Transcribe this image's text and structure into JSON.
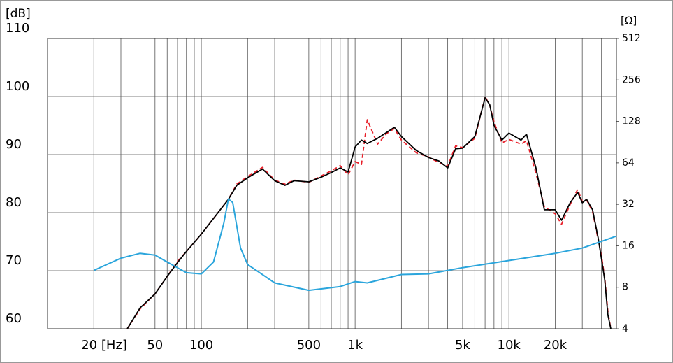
{
  "chart_data": {
    "type": "line",
    "xlabel": "[Hz]",
    "ylabel": "[dB]",
    "y2label": "[Ω]",
    "xlog": true,
    "y2log": true,
    "grid": true,
    "xlim": [
      10,
      50000
    ],
    "ylim": [
      60,
      110
    ],
    "y2lim": [
      4,
      512
    ],
    "xticks": [
      {
        "value": 20,
        "label": "20 [Hz]"
      },
      50,
      100,
      500,
      {
        "value": 1000,
        "label": "1k"
      },
      {
        "value": 5000,
        "label": "5k"
      },
      {
        "value": 10000,
        "label": "10k"
      },
      {
        "value": 20000,
        "label": "20k"
      }
    ],
    "xgrid": [
      20,
      30,
      40,
      50,
      60,
      70,
      80,
      90,
      100,
      200,
      300,
      400,
      500,
      600,
      700,
      800,
      900,
      1000,
      2000,
      3000,
      4000,
      5000,
      6000,
      7000,
      8000,
      9000,
      10000,
      20000,
      30000,
      40000
    ],
    "yticks": [
      60,
      70,
      80,
      90,
      100,
      110
    ],
    "y2ticks": [
      4,
      8,
      16,
      32,
      64,
      128,
      256,
      512
    ],
    "series": [
      {
        "color": "#e8202a",
        "dash": true,
        "x": [
          33,
          40,
          50,
          60,
          70,
          80,
          100,
          120,
          150,
          170,
          200,
          250,
          300,
          350,
          400,
          500,
          600,
          700,
          800,
          900,
          1000,
          1100,
          1200,
          1400,
          1600,
          1800,
          2000,
          2500,
          3000,
          3500,
          4000,
          4500,
          5000,
          6000,
          7000,
          7500,
          8000,
          9000,
          10000,
          12000,
          13000,
          15000,
          17000,
          20000,
          22000,
          25000,
          28000,
          30000,
          32000,
          35000,
          38000,
          40000,
          42000,
          44000,
          46000
        ],
        "values": [
          60,
          63.4,
          66,
          69,
          71.6,
          73.3,
          76.3,
          79,
          82.3,
          84.9,
          86.2,
          87.8,
          85.6,
          84.9,
          85.6,
          85.2,
          86.3,
          87.2,
          88.1,
          86.5,
          88.8,
          88.3,
          96,
          91.8,
          93.6,
          94.5,
          92.5,
          90.3,
          89.6,
          88.6,
          88,
          91.5,
          91.2,
          92.8,
          100,
          98.5,
          95.6,
          92,
          92.6,
          91.8,
          92.4,
          86.8,
          81,
          79.8,
          78,
          81.4,
          84,
          81.9,
          82.2,
          80.2,
          75.4,
          72.5,
          68.8,
          63,
          60
        ]
      },
      {
        "color": "#000000",
        "dash": false,
        "x": [
          33,
          40,
          50,
          60,
          70,
          80,
          100,
          120,
          150,
          170,
          200,
          250,
          300,
          350,
          400,
          500,
          600,
          700,
          800,
          900,
          1000,
          1100,
          1200,
          1400,
          1600,
          1800,
          2000,
          2500,
          3000,
          3500,
          4000,
          4500,
          5000,
          6000,
          7000,
          7500,
          8000,
          9000,
          10000,
          12000,
          13000,
          15000,
          17000,
          20000,
          22000,
          25000,
          28000,
          30000,
          32000,
          35000,
          38000,
          40000,
          42000,
          44000,
          46000
        ],
        "values": [
          60,
          63.6,
          66,
          69,
          71.4,
          73.3,
          76.3,
          79,
          82.3,
          84.7,
          86,
          87.5,
          85.5,
          84.7,
          85.5,
          85.3,
          86.1,
          86.9,
          87.7,
          87,
          91.3,
          92.5,
          91.9,
          92.8,
          93.8,
          94.7,
          93.1,
          90.7,
          89.5,
          88.9,
          87.7,
          91,
          91.1,
          93.1,
          99.8,
          98.6,
          95,
          92.5,
          93.7,
          92.5,
          93.5,
          87.7,
          80.5,
          80.5,
          78.7,
          81.7,
          83.5,
          81.7,
          82.3,
          80.5,
          75.7,
          72,
          68.4,
          62.4,
          60
        ]
      },
      {
        "color": "#2aa5dc",
        "dash": false,
        "axis": "y2",
        "x": [
          20,
          30,
          40,
          50,
          60,
          80,
          100,
          120,
          140,
          150,
          160,
          180,
          200,
          300,
          500,
          800,
          1000,
          1200,
          2000,
          3000,
          5000,
          10000,
          20000,
          30000,
          50000
        ],
        "values": [
          10.6,
          13,
          14.1,
          13.7,
          12.2,
          10.2,
          10,
          12.2,
          23.3,
          35,
          33,
          15.4,
          11.7,
          8.6,
          7.6,
          8.1,
          8.8,
          8.6,
          9.9,
          10,
          11.1,
          12.5,
          14.1,
          15.4,
          18.8
        ]
      }
    ]
  }
}
